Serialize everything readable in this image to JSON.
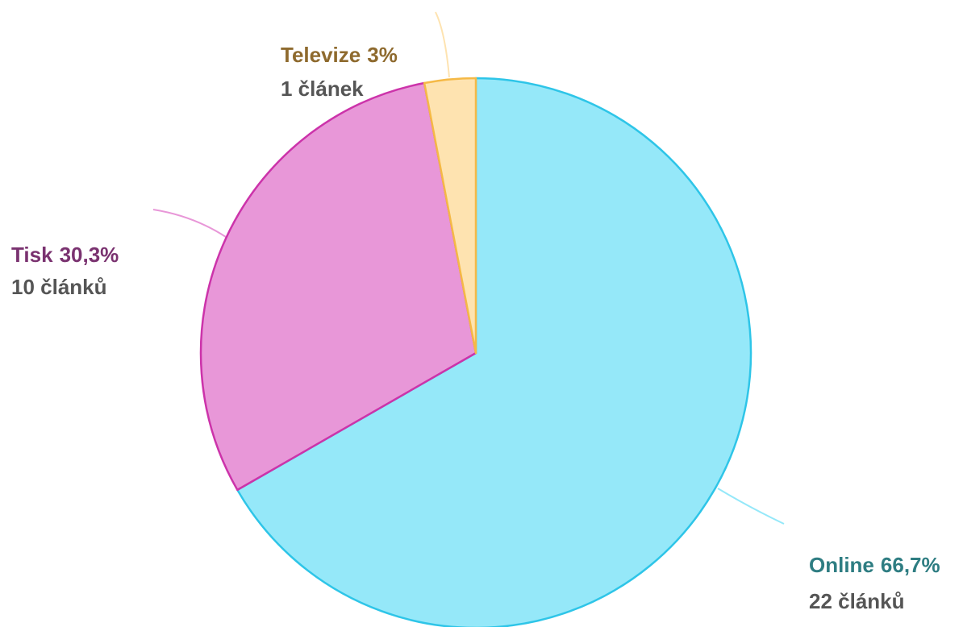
{
  "chart_data": {
    "type": "pie",
    "categories": [
      "Online",
      "Tisk",
      "Televize"
    ],
    "values": [
      66.7,
      30.3,
      3
    ],
    "value_labels": [
      "66,7%",
      "30,3%",
      "3%"
    ],
    "details": [
      "22 článků",
      "10 článků",
      "1 článek"
    ],
    "colors": [
      "#95e8f9",
      "#e897d8",
      "#fee3b0"
    ],
    "stroke_colors": [
      "#2ec5e8",
      "#cc33aa",
      "#f5b946"
    ],
    "label_colors": [
      "#2e7d82",
      "#7a3270",
      "#8e6a2e"
    ]
  }
}
